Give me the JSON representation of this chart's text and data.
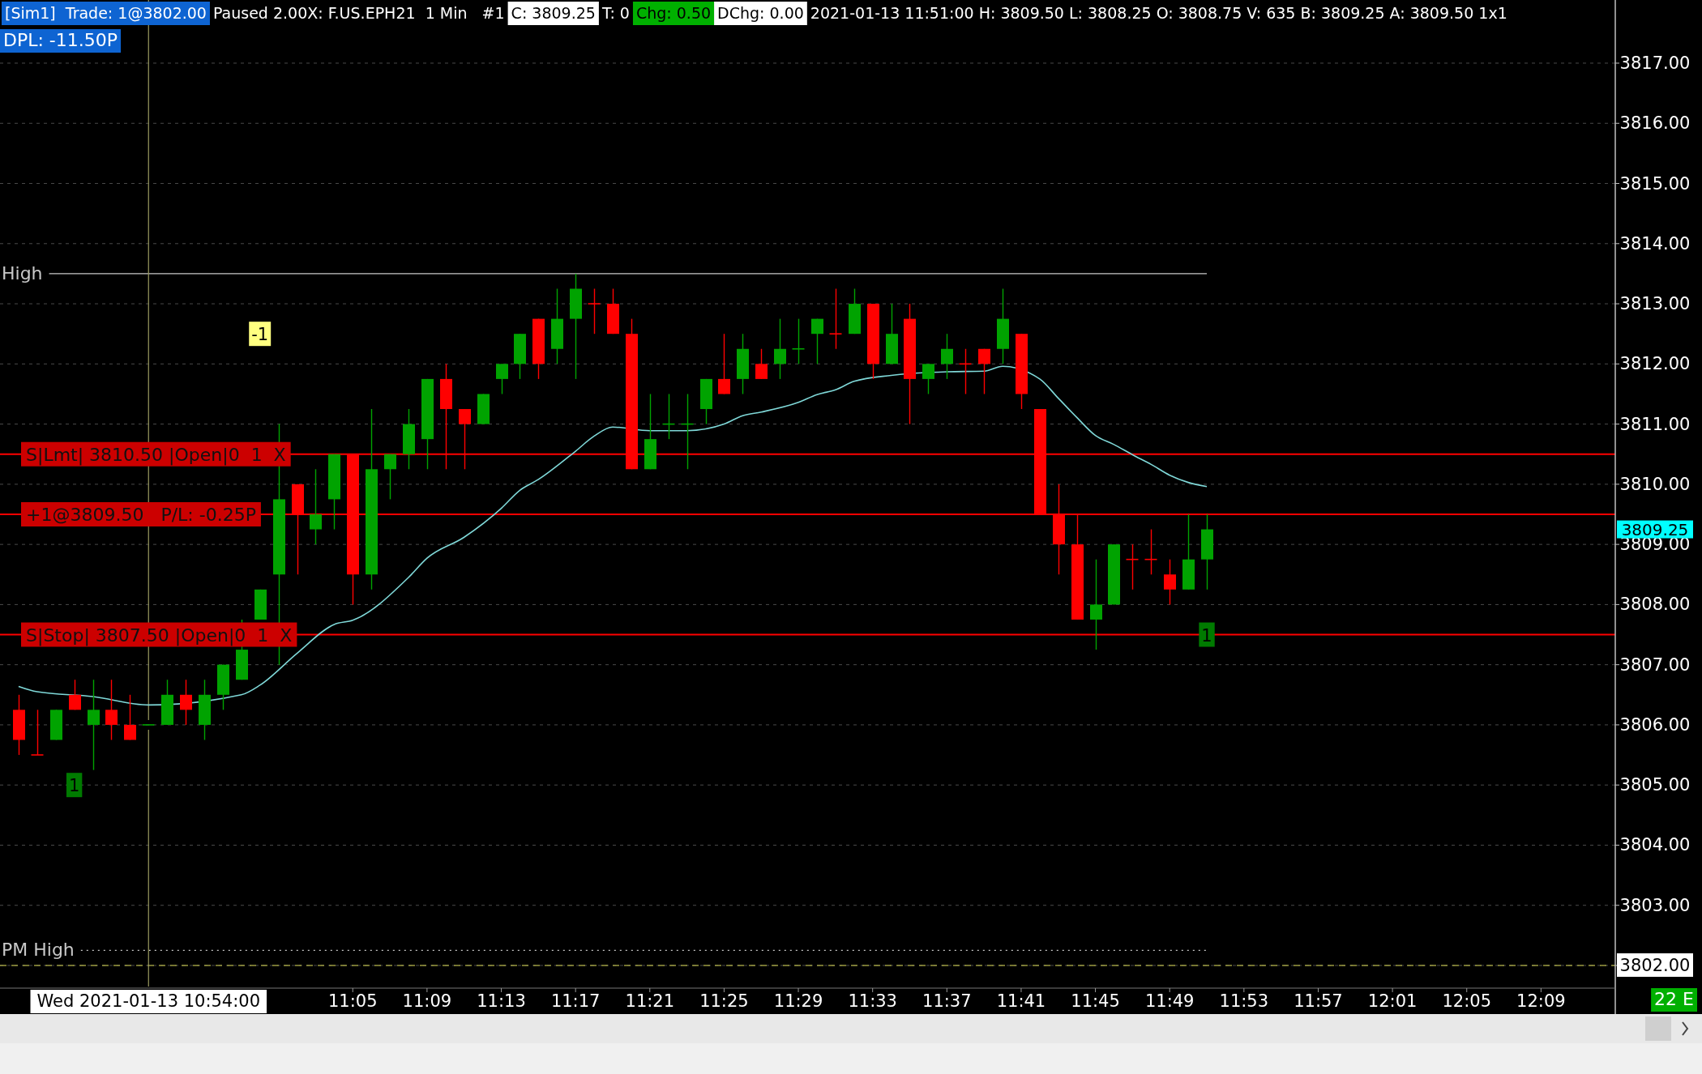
{
  "chart_data": {
    "type": "candlestick",
    "x": [
      "2021-01-13T10:47",
      "2021-01-13T10:48",
      "2021-01-13T10:49",
      "2021-01-13T10:50",
      "2021-01-13T10:51",
      "2021-01-13T10:52",
      "2021-01-13T10:53",
      "2021-01-13T10:54",
      "2021-01-13T10:55",
      "2021-01-13T10:56",
      "2021-01-13T10:57",
      "2021-01-13T10:58",
      "2021-01-13T10:59",
      "2021-01-13T11:00",
      "2021-01-13T11:01",
      "2021-01-13T11:02",
      "2021-01-13T11:03",
      "2021-01-13T11:04",
      "2021-01-13T11:05",
      "2021-01-13T11:06",
      "2021-01-13T11:07",
      "2021-01-13T11:08",
      "2021-01-13T11:09",
      "2021-01-13T11:10",
      "2021-01-13T11:11",
      "2021-01-13T11:12",
      "2021-01-13T11:13",
      "2021-01-13T11:14",
      "2021-01-13T11:15",
      "2021-01-13T11:16",
      "2021-01-13T11:17",
      "2021-01-13T11:18",
      "2021-01-13T11:19",
      "2021-01-13T11:20",
      "2021-01-13T11:21",
      "2021-01-13T11:22",
      "2021-01-13T11:23",
      "2021-01-13T11:24",
      "2021-01-13T11:25",
      "2021-01-13T11:26",
      "2021-01-13T11:27",
      "2021-01-13T11:28",
      "2021-01-13T11:29",
      "2021-01-13T11:30",
      "2021-01-13T11:31",
      "2021-01-13T11:32",
      "2021-01-13T11:33",
      "2021-01-13T11:34",
      "2021-01-13T11:35",
      "2021-01-13T11:36",
      "2021-01-13T11:37",
      "2021-01-13T11:38",
      "2021-01-13T11:39",
      "2021-01-13T11:40",
      "2021-01-13T11:41",
      "2021-01-13T11:42",
      "2021-01-13T11:43",
      "2021-01-13T11:44",
      "2021-01-13T11:45",
      "2021-01-13T11:46",
      "2021-01-13T11:47",
      "2021-01-13T11:48",
      "2021-01-13T11:49",
      "2021-01-13T11:50",
      "2021-01-13T11:51"
    ],
    "ohlc": [
      [
        3806.25,
        3806.5,
        3805.5,
        3805.75
      ],
      [
        3805.5,
        3806.25,
        3805.5,
        3805.5
      ],
      [
        3805.75,
        3806.25,
        3805.75,
        3806.25
      ],
      [
        3806.5,
        3806.75,
        3806.25,
        3806.25
      ],
      [
        3806,
        3806.75,
        3805.25,
        3806.25
      ],
      [
        3806.25,
        3806.75,
        3805.75,
        3806
      ],
      [
        3806,
        3806.5,
        3805.75,
        3805.75
      ],
      [
        3806,
        3806,
        3806,
        3806
      ],
      [
        3806,
        3806.75,
        3806,
        3806.5
      ],
      [
        3806.5,
        3806.75,
        3806,
        3806.25
      ],
      [
        3806,
        3806.75,
        3805.75,
        3806.5
      ],
      [
        3806.5,
        3807,
        3806.25,
        3807
      ],
      [
        3806.75,
        3807.75,
        3806.75,
        3807.25
      ],
      [
        3807.75,
        3808.25,
        3807.75,
        3808.25
      ],
      [
        3808.5,
        3811,
        3807,
        3809.75
      ],
      [
        3810,
        3810,
        3808.5,
        3809.5
      ],
      [
        3809.25,
        3810.25,
        3809,
        3809.5
      ],
      [
        3809.75,
        3810.5,
        3809.25,
        3810.5
      ],
      [
        3810.5,
        3810.5,
        3808,
        3808.5
      ],
      [
        3808.5,
        3811.25,
        3808.25,
        3810.25
      ],
      [
        3810.25,
        3810.5,
        3809.75,
        3810.5
      ],
      [
        3810.5,
        3811.25,
        3810.25,
        3811
      ],
      [
        3810.75,
        3811.75,
        3810.25,
        3811.75
      ],
      [
        3811.75,
        3812,
        3810.25,
        3811.25
      ],
      [
        3811.25,
        3811.25,
        3810.25,
        3811
      ],
      [
        3811,
        3811.5,
        3811,
        3811.5
      ],
      [
        3811.75,
        3812,
        3811.5,
        3812
      ],
      [
        3812,
        3812.5,
        3811.75,
        3812.5
      ],
      [
        3812.75,
        3812.75,
        3811.75,
        3812
      ],
      [
        3812.25,
        3813.25,
        3812,
        3812.75
      ],
      [
        3812.75,
        3813.5,
        3811.75,
        3813.25
      ],
      [
        3813,
        3813.25,
        3812.5,
        3813
      ],
      [
        3813,
        3813.25,
        3812.5,
        3812.5
      ],
      [
        3812.5,
        3812.75,
        3810.25,
        3810.25
      ],
      [
        3810.25,
        3811.5,
        3810.25,
        3810.75
      ],
      [
        3811,
        3811.5,
        3810.75,
        3811
      ],
      [
        3811,
        3811.5,
        3810.25,
        3811
      ],
      [
        3811.25,
        3811.75,
        3811,
        3811.75
      ],
      [
        3811.75,
        3812.5,
        3811.5,
        3811.5
      ],
      [
        3811.75,
        3812.5,
        3811.5,
        3812.25
      ],
      [
        3812,
        3812.25,
        3811.75,
        3811.75
      ],
      [
        3812,
        3812.75,
        3811.75,
        3812.25
      ],
      [
        3812.25,
        3812.75,
        3812,
        3812.25
      ],
      [
        3812.5,
        3812.75,
        3812,
        3812.75
      ],
      [
        3812.5,
        3813.25,
        3812.25,
        3812.5
      ],
      [
        3812.5,
        3813.25,
        3812.5,
        3813
      ],
      [
        3813,
        3813,
        3811.75,
        3812
      ],
      [
        3812,
        3813,
        3812,
        3812.5
      ],
      [
        3812.75,
        3813,
        3811,
        3811.75
      ],
      [
        3811.75,
        3812,
        3811.5,
        3812
      ],
      [
        3812,
        3812.5,
        3811.75,
        3812.25
      ],
      [
        3812,
        3812.25,
        3811.5,
        3812
      ],
      [
        3812.25,
        3812.25,
        3811.5,
        3812
      ],
      [
        3812.25,
        3813.25,
        3812,
        3812.75
      ],
      [
        3812.5,
        3812.5,
        3811.25,
        3811.5
      ],
      [
        3811.25,
        3811.25,
        3809.5,
        3809.5
      ],
      [
        3809.5,
        3810,
        3808.5,
        3809
      ],
      [
        3809,
        3809.5,
        3807.75,
        3807.75
      ],
      [
        3807.75,
        3808.75,
        3807.25,
        3808
      ],
      [
        3808,
        3809,
        3808,
        3809
      ],
      [
        3808.75,
        3809,
        3808.25,
        3808.75
      ],
      [
        3808.75,
        3809.25,
        3808.5,
        3808.75
      ],
      [
        3808.5,
        3808.75,
        3808,
        3808.25
      ],
      [
        3808.25,
        3809.5,
        3808.25,
        3808.75
      ],
      [
        3808.75,
        3809.5,
        3808.25,
        3809.25
      ]
    ],
    "colors": [
      "#ff0000",
      "#ff0000",
      "#00a300",
      "#ff0000",
      "#00a300",
      "#ff0000",
      "#ff0000",
      "#00a300",
      "#00a300",
      "#ff0000",
      "#00a300",
      "#00a300",
      "#00a300",
      "#00a300",
      "#00a300",
      "#ff0000",
      "#00a300",
      "#00a300",
      "#ff0000",
      "#00a300",
      "#00a300",
      "#00a300",
      "#00a300",
      "#ff0000",
      "#ff0000",
      "#00a300",
      "#00a300",
      "#00a300",
      "#ff0000",
      "#00a300",
      "#00a300",
      "#ff0000",
      "#ff0000",
      "#ff0000",
      "#00a300",
      "#00a300",
      "#00a300",
      "#00a300",
      "#ff0000",
      "#00a300",
      "#ff0000",
      "#00a300",
      "#00a300",
      "#00a300",
      "#ff0000",
      "#00a300",
      "#ff0000",
      "#00a300",
      "#ff0000",
      "#00a300",
      "#00a300",
      "#ff0000",
      "#ff0000",
      "#00a300",
      "#ff0000",
      "#ff0000",
      "#ff0000",
      "#ff0000",
      "#00a300",
      "#00a300",
      "#ff0000",
      "#ff0000",
      "#ff0000",
      "#00a300",
      "#00a300"
    ],
    "series": [
      {
        "type": "line",
        "color": "#7fd8d8",
        "x": [
          "2021-01-13T10:47",
          "2021-01-13T10:48",
          "2021-01-13T10:51",
          "2021-01-13T10:54",
          "2021-01-13T10:57",
          "2021-01-13T10:59",
          "2021-01-13T11:00",
          "2021-01-13T11:02",
          "2021-01-13T11:04",
          "2021-01-13T11:05",
          "2021-01-13T11:08",
          "2021-01-13T11:09",
          "2021-01-13T11:11",
          "2021-01-13T11:13",
          "2021-01-13T11:14",
          "2021-01-13T11:15",
          "2021-01-13T11:17",
          "2021-01-13T11:18",
          "2021-01-13T11:19",
          "2021-01-13T11:21",
          "2021-01-13T11:23",
          "2021-01-13T11:25",
          "2021-01-13T11:26",
          "2021-01-13T11:27",
          "2021-01-13T11:29",
          "2021-01-13T11:30",
          "2021-01-13T11:31",
          "2021-01-13T11:32",
          "2021-01-13T11:34",
          "2021-01-13T11:35",
          "2021-01-13T11:37",
          "2021-01-13T11:39",
          "2021-01-13T11:40",
          "2021-01-13T11:41",
          "2021-01-13T11:42",
          "2021-01-13T11:43",
          "2021-01-13T11:44",
          "2021-01-13T11:45",
          "2021-01-13T11:46",
          "2021-01-13T11:47",
          "2021-01-13T11:48",
          "2021-01-13T11:49",
          "2021-01-13T11:50",
          "2021-01-13T11:51"
        ],
        "values": [
          3806.64,
          3806.55,
          3806.47,
          3806.33,
          null,
          3806.5,
          3806.66,
          3807.19,
          3807.67,
          3807.74,
          3808.45,
          3808.77,
          3809.12,
          3809.6,
          3809.9,
          3810.08,
          3810.55,
          3810.8,
          3810.95,
          3810.89,
          3810.89,
          3811.0,
          3811.14,
          3811.2,
          3811.36,
          3811.49,
          3811.57,
          3811.71,
          3811.81,
          null,
          3811.87,
          3811.88,
          3811.96,
          null,
          3811.75,
          3811.43,
          3811.11,
          3810.81,
          3810.66,
          3810.49,
          3810.33,
          3810.15,
          3810.03,
          3809.96
        ]
      }
    ],
    "xlim": [
      "2021-01-13T10:46",
      "2021-01-13T12:13"
    ],
    "xticks": [
      {
        "value": "2021-01-13T11:05",
        "label": "11:05"
      },
      {
        "value": "2021-01-13T11:09",
        "label": "11:09"
      },
      {
        "value": "2021-01-13T11:13",
        "label": "11:13"
      },
      {
        "value": "2021-01-13T11:17",
        "label": "11:17"
      },
      {
        "value": "2021-01-13T11:21",
        "label": "11:21"
      },
      {
        "value": "2021-01-13T11:25",
        "label": "11:25"
      },
      {
        "value": "2021-01-13T11:29",
        "label": "11:29"
      },
      {
        "value": "2021-01-13T11:33",
        "label": "11:33"
      },
      {
        "value": "2021-01-13T11:37",
        "label": "11:37"
      },
      {
        "value": "2021-01-13T11:41",
        "label": "11:41"
      },
      {
        "value": "2021-01-13T11:45",
        "label": "11:45"
      },
      {
        "value": "2021-01-13T11:49",
        "label": "11:49"
      },
      {
        "value": "2021-01-13T11:53",
        "label": "11:53"
      },
      {
        "value": "2021-01-13T11:57",
        "label": "11:57"
      },
      {
        "value": "2021-01-13T12:01",
        "label": "12:01"
      },
      {
        "value": "2021-01-13T12:05",
        "label": "12:05"
      },
      {
        "value": "2021-01-13T12:09",
        "label": "12:09"
      }
    ],
    "ylim": [
      3801.65,
      3818.05
    ],
    "yticks": [
      {
        "value": 3802,
        "label": "3802.00"
      },
      {
        "value": 3803,
        "label": "3803.00"
      },
      {
        "value": 3804,
        "label": "3804.00"
      },
      {
        "value": 3805,
        "label": "3805.00"
      },
      {
        "value": 3806,
        "label": "3806.00"
      },
      {
        "value": 3807,
        "label": "3807.00"
      },
      {
        "value": 3808,
        "label": "3808.00"
      },
      {
        "value": 3809,
        "label": "3809.00"
      },
      {
        "value": 3810,
        "label": "3810.00"
      },
      {
        "value": 3811,
        "label": "3811.00"
      },
      {
        "value": 3812,
        "label": "3812.00"
      },
      {
        "value": 3813,
        "label": "3813.00"
      },
      {
        "value": 3814,
        "label": "3814.00"
      },
      {
        "value": 3815,
        "label": "3815.00"
      },
      {
        "value": 3816,
        "label": "3816.00"
      },
      {
        "value": 3817,
        "label": "3817.00"
      }
    ],
    "grid": "y",
    "ref_lines": [
      {
        "axis": "y",
        "value": 3813.5,
        "label": "High",
        "color": "#c8c8c8",
        "line_style": "solid"
      },
      {
        "axis": "y",
        "value": 3802.25,
        "label": "PM High",
        "color": "#c8c8c8",
        "line_style": "dotted"
      },
      {
        "axis": "y",
        "value": 3802,
        "color": "#9a9a40",
        "line_style": "dashed"
      },
      {
        "axis": "y",
        "value": 3810.5,
        "label": "S|Lmt| 3810.50 |Open|0  1  X",
        "color": "#ff0000"
      },
      {
        "axis": "y",
        "value": 3809.5,
        "label": "+1@3809.50   P/L: -0.25P",
        "color": "#ff0000"
      },
      {
        "axis": "y",
        "value": 3807.5,
        "label": "S|Stop| 3807.50 |Open|0  1  X",
        "color": "#ff0000"
      },
      {
        "axis": "x",
        "value": "2021-01-13T10:54",
        "label": "Wed 2021-01-13  10:54:00",
        "color": "#9a9a60"
      }
    ],
    "annotations": [
      "[Sim1]  Trade: 1@3802.00",
      "Paused 2.00X: F.US.EPH21  1 Min   #1",
      "C: 3809.25",
      "T: 0",
      "Chg: 0.50",
      "DChg: 0.00",
      "2021-01-13 11:51:00 H: 3809.50 L: 3808.25 O: 3808.75 V: 635 B: 3809.25 A: 3809.50 1x1",
      "DPL: -11.50P",
      "22 E",
      "3809.25",
      {
        "text": "-1",
        "x": "2021-01-13T11:00",
        "y": 3812.5
      },
      {
        "text": "1",
        "x": "2021-01-13T10:50",
        "y": 3805
      },
      {
        "text": "1",
        "x": "2021-01-13T11:51",
        "y": 3807.5
      }
    ]
  }
}
